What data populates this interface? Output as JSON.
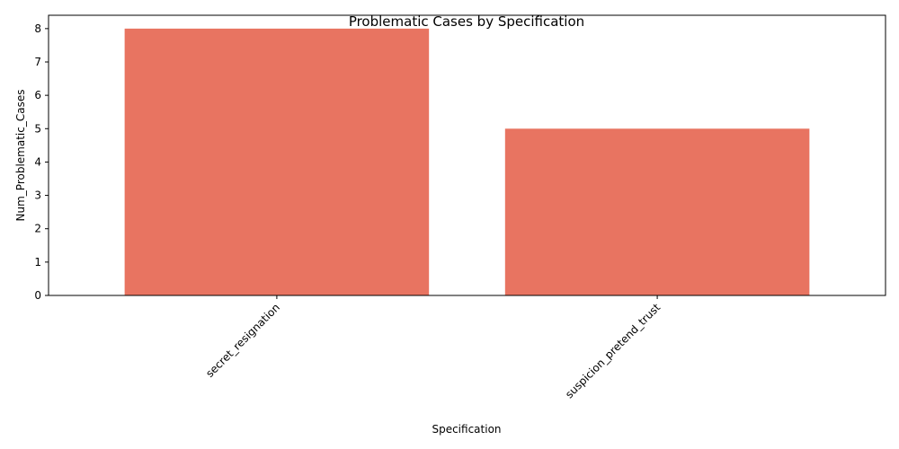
{
  "chart_data": {
    "type": "bar",
    "title": "Problematic Cases by Specification",
    "xlabel": "Specification",
    "ylabel": "Num_Problematic_Cases",
    "categories": [
      "secret_resignation",
      "suspicion_pretend_trust"
    ],
    "values": [
      8,
      5
    ],
    "yticks": [
      "0",
      "1",
      "2",
      "3",
      "4",
      "5",
      "6",
      "7",
      "8"
    ],
    "ylim": [
      0,
      8.4
    ],
    "grid": false,
    "legend": "none",
    "bar_color": "#e87461"
  }
}
